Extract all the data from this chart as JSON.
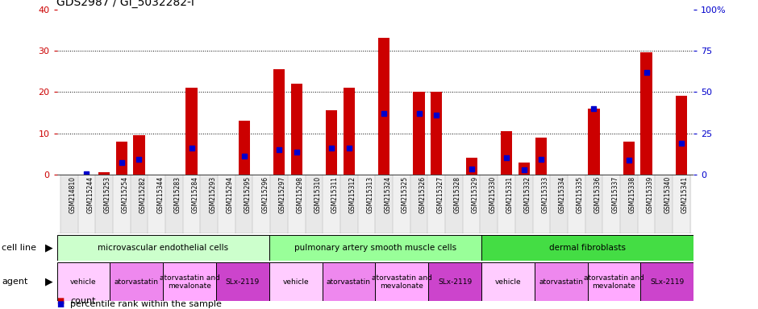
{
  "title": "GDS2987 / GI_5032282-I",
  "samples": [
    "GSM214810",
    "GSM215244",
    "GSM215253",
    "GSM215254",
    "GSM215282",
    "GSM215344",
    "GSM215283",
    "GSM215284",
    "GSM215293",
    "GSM215294",
    "GSM215295",
    "GSM215296",
    "GSM215297",
    "GSM215298",
    "GSM215310",
    "GSM215311",
    "GSM215312",
    "GSM215313",
    "GSM215324",
    "GSM215325",
    "GSM215326",
    "GSM215327",
    "GSM215328",
    "GSM215329",
    "GSM215330",
    "GSM215331",
    "GSM215332",
    "GSM215333",
    "GSM215334",
    "GSM215335",
    "GSM215336",
    "GSM215337",
    "GSM215338",
    "GSM215339",
    "GSM215340",
    "GSM215341"
  ],
  "count_values": [
    0,
    0,
    0.5,
    8,
    9.5,
    0,
    0,
    21,
    0,
    0,
    13,
    0,
    25.5,
    22,
    0,
    15.5,
    21,
    0,
    33,
    0,
    20,
    20,
    0,
    4,
    0,
    10.5,
    3,
    9,
    0,
    0,
    16,
    0,
    8,
    29.5,
    0,
    19
  ],
  "percentile_values": [
    0,
    0.3,
    0,
    7.5,
    9,
    0,
    0,
    16,
    0,
    0,
    11,
    0,
    15,
    13.5,
    0,
    16,
    16,
    0,
    37,
    0,
    37,
    36,
    0,
    3.5,
    0,
    10,
    3,
    9,
    0,
    0,
    40,
    0,
    8.5,
    62,
    0,
    19
  ],
  "ylim_left": [
    0,
    40
  ],
  "ylim_right": [
    0,
    100
  ],
  "yticks_left": [
    0,
    10,
    20,
    30,
    40
  ],
  "yticks_right": [
    0,
    25,
    50,
    75,
    100
  ],
  "cell_lines": [
    {
      "label": "microvascular endothelial cells",
      "start": 0,
      "end": 12,
      "color": "#ccffcc"
    },
    {
      "label": "pulmonary artery smooth muscle cells",
      "start": 12,
      "end": 24,
      "color": "#99ff99"
    },
    {
      "label": "dermal fibroblasts",
      "start": 24,
      "end": 36,
      "color": "#44dd44"
    }
  ],
  "agents": [
    {
      "label": "vehicle",
      "start": 0,
      "end": 3,
      "color": "#ffccff"
    },
    {
      "label": "atorvastatin",
      "start": 3,
      "end": 6,
      "color": "#ee88ee"
    },
    {
      "label": "atorvastatin and\nmevalonate",
      "start": 6,
      "end": 9,
      "color": "#ffaaff"
    },
    {
      "label": "SLx-2119",
      "start": 9,
      "end": 12,
      "color": "#cc44cc"
    },
    {
      "label": "vehicle",
      "start": 12,
      "end": 15,
      "color": "#ffccff"
    },
    {
      "label": "atorvastatin",
      "start": 15,
      "end": 18,
      "color": "#ee88ee"
    },
    {
      "label": "atorvastatin and\nmevalonate",
      "start": 18,
      "end": 21,
      "color": "#ffaaff"
    },
    {
      "label": "SLx-2119",
      "start": 21,
      "end": 24,
      "color": "#cc44cc"
    },
    {
      "label": "vehicle",
      "start": 24,
      "end": 27,
      "color": "#ffccff"
    },
    {
      "label": "atorvastatin",
      "start": 27,
      "end": 30,
      "color": "#ee88ee"
    },
    {
      "label": "atorvastatin and\nmevalonate",
      "start": 30,
      "end": 33,
      "color": "#ffaaff"
    },
    {
      "label": "SLx-2119",
      "start": 33,
      "end": 36,
      "color": "#cc44cc"
    }
  ],
  "bar_color": "#cc0000",
  "percentile_color": "#0000cc",
  "title_color": "#000000",
  "left_axis_color": "#cc0000",
  "right_axis_color": "#0000cc",
  "background_color": "#ffffff",
  "right_ytick_labels": [
    "0",
    "25",
    "50",
    "75",
    "100%"
  ]
}
